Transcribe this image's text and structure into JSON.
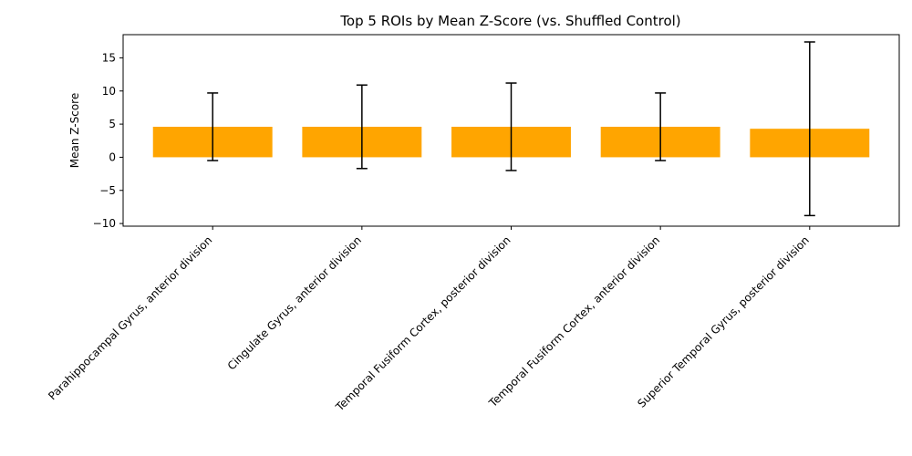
{
  "chart_data": {
    "type": "bar",
    "title": "Top 5 ROIs by Mean Z-Score (vs. Shuffled Control)",
    "xlabel": "",
    "ylabel": "Mean Z-Score",
    "categories": [
      "Parahippocampal Gyrus, anterior division",
      "Cingulate Gyrus, anterior division",
      "Temporal Fusiform Cortex, posterior division",
      "Temporal Fusiform Cortex, anterior division",
      "Superior Temporal Gyrus, posterior division"
    ],
    "values": [
      4.6,
      4.6,
      4.6,
      4.6,
      4.3
    ],
    "errors": [
      5.1,
      6.3,
      6.6,
      5.1,
      13.1
    ],
    "ylim": [
      -10.4,
      18.5
    ],
    "yticks": [
      -10,
      -5,
      0,
      5,
      10,
      15
    ],
    "bar_color": "#ffa500",
    "error_color": "#000000",
    "grid": false,
    "legend": "none"
  }
}
